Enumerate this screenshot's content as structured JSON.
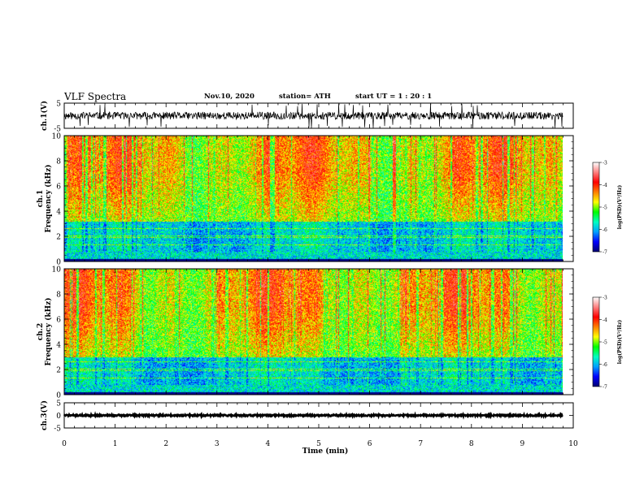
{
  "header": {
    "title": "VLF Spectra",
    "date": "Nov.10, 2020",
    "station": "station= ATH",
    "start": "start  UT =   1 : 20 : 1"
  },
  "colors": {
    "spectrogram_background": "#00d8c0",
    "waveform": "#000000",
    "colormap": [
      "#000070",
      "#0000ff",
      "#00a0ff",
      "#00ffc0",
      "#00ff00",
      "#ffff00",
      "#ff8000",
      "#ff0000",
      "#ff8080",
      "#ffffff"
    ]
  },
  "chart_data": [
    {
      "type": "line",
      "panel": "ch1-waveform",
      "ylabel": "ch.1(V)",
      "ylim": [
        -5,
        5
      ],
      "yticks": [
        "5",
        "-5"
      ],
      "xlim": [
        0,
        10
      ],
      "x_end": 9.8,
      "baseline": 0,
      "typical_amplitude": 1.5
    },
    {
      "type": "heatmap",
      "panel": "ch1-spectrogram",
      "ylabel": "ch.1\nFrequency (kHz)",
      "ylim": [
        0,
        10
      ],
      "yticks": [
        "0",
        "2",
        "4",
        "6",
        "8",
        "10"
      ],
      "xlim": [
        0,
        10
      ],
      "x_end": 9.8,
      "colorbar": {
        "label": "log(PSD)(V²/Hz)",
        "range": [
          -7,
          -3
        ],
        "ticks": [
          "-3",
          "-4",
          "-5",
          "-6",
          "-7"
        ]
      }
    },
    {
      "type": "heatmap",
      "panel": "ch2-spectrogram",
      "ylabel": "ch.2\nFrequency (kHz)",
      "ylim": [
        0,
        10
      ],
      "yticks": [
        "0",
        "2",
        "4",
        "6",
        "8",
        "10"
      ],
      "xlim": [
        0,
        10
      ],
      "x_end": 9.8,
      "colorbar": {
        "label": "log(PSD)(V²/Hz)",
        "range": [
          -7,
          -3
        ],
        "ticks": [
          "-3",
          "-4",
          "-5",
          "-6",
          "-7"
        ]
      }
    },
    {
      "type": "line",
      "panel": "ch3-waveform",
      "ylabel": "ch.3(V)",
      "ylim": [
        -5,
        5
      ],
      "yticks": [
        "5",
        "0",
        "-5"
      ],
      "xlim": [
        0,
        10
      ],
      "x_end": 9.8,
      "baseline": 0,
      "typical_amplitude": 0.3
    }
  ],
  "xaxis": {
    "label": "Time (min)",
    "ticks": [
      "0",
      "1",
      "2",
      "3",
      "4",
      "5",
      "6",
      "7",
      "8",
      "9",
      "10"
    ]
  }
}
